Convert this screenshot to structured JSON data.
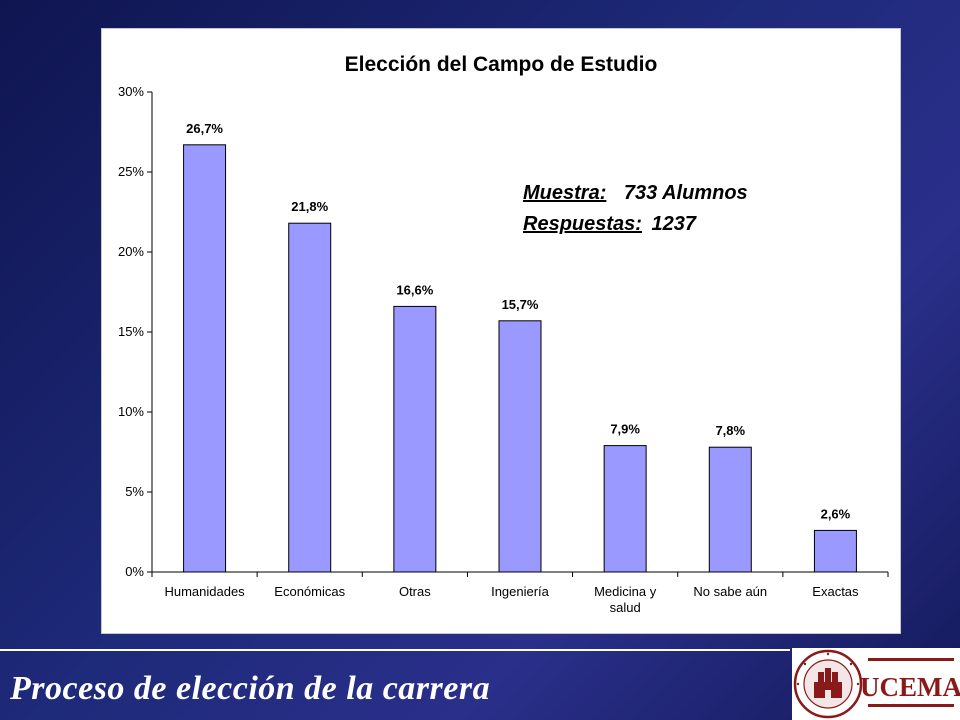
{
  "slide": {
    "footer_title": "Proceso de elección de la carrera",
    "logo_text": "UCEMA",
    "background_color": "#1e2a7a"
  },
  "chart_data": {
    "type": "bar",
    "title": "Elección del Campo de Estudio",
    "categories": [
      "Humanidades",
      "Económicas",
      "Otras",
      "Ingeniería",
      "Medicina y salud",
      "No sabe aún",
      "Exactas"
    ],
    "category_lines": [
      [
        "Humanidades"
      ],
      [
        "Económicas"
      ],
      [
        "Otras"
      ],
      [
        "Ingeniería"
      ],
      [
        "Medicina y",
        "salud"
      ],
      [
        "No sabe aún"
      ],
      [
        "Exactas"
      ]
    ],
    "values": [
      26.7,
      21.8,
      16.6,
      15.7,
      7.9,
      7.8,
      2.6
    ],
    "data_labels": [
      "26,7%",
      "21,8%",
      "16,6%",
      "15,7%",
      "7,9%",
      "7,8%",
      "2,6%"
    ],
    "ylim": [
      0,
      30
    ],
    "yticks": [
      0,
      5,
      10,
      15,
      20,
      25,
      30
    ],
    "ytick_labels": [
      "0%",
      "5%",
      "10%",
      "15%",
      "20%",
      "25%",
      "30%"
    ],
    "xlabel": "",
    "ylabel": "",
    "bar_color": "#9999ff",
    "grid": false,
    "legend": "none",
    "annotation": {
      "line1_label": "Muestra:",
      "line1_value": "733 Alumnos",
      "line2_label": "Respuestas:",
      "line2_value": "1237"
    }
  }
}
